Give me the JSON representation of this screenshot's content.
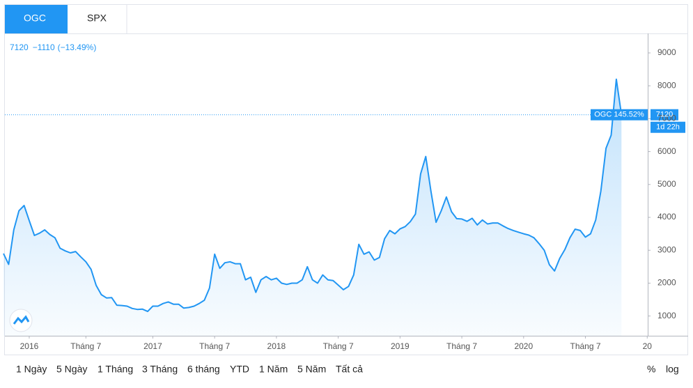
{
  "tabs": [
    "OGC",
    "SPX"
  ],
  "quote": {
    "change": "−1110",
    "change_pct": "(−13.49%)"
  },
  "ranges": [
    "1 Ngày",
    "5 Ngày",
    "1 Tháng",
    "3 Tháng",
    "6 tháng",
    "YTD",
    "1 Năm",
    "5 Năm",
    "Tất cả"
  ],
  "scales": [
    "%",
    "log"
  ],
  "chart_data": {
    "type": "line",
    "compare_label": "OGC 145.52%",
    "countdown": "1d 22h",
    "color": "#2196f3",
    "categories": [
      null,
      null,
      null,
      null,
      null,
      null,
      null,
      null,
      null,
      null,
      null,
      null,
      null,
      null,
      null,
      null,
      null,
      null,
      null,
      null,
      null,
      null,
      null,
      null,
      null,
      null,
      null,
      null,
      null,
      null,
      null,
      null,
      null,
      null,
      null,
      null,
      null,
      null,
      null,
      null,
      null,
      null,
      null,
      null,
      null,
      null,
      null,
      null,
      null,
      null,
      null,
      null,
      null,
      null,
      null,
      null,
      null,
      null,
      null,
      null,
      null,
      null,
      null,
      null,
      null,
      null,
      null,
      null,
      null,
      null,
      null,
      null,
      null,
      null,
      null,
      null,
      null,
      null,
      null,
      null,
      null,
      null,
      null,
      null,
      null,
      null,
      null,
      null,
      null,
      null,
      null,
      null,
      null,
      null,
      null,
      null,
      null,
      null,
      null,
      null,
      null,
      null,
      null,
      null,
      null,
      null,
      null,
      null,
      null,
      null,
      null,
      null,
      null,
      null,
      null,
      null,
      null,
      null,
      null,
      null,
      null
    ],
    "values": [
      2900,
      2570,
      3620,
      4200,
      4360,
      3900,
      3450,
      3520,
      3620,
      3480,
      3380,
      3060,
      2980,
      2920,
      2960,
      2800,
      2650,
      2420,
      1930,
      1650,
      1550,
      1560,
      1330,
      1320,
      1300,
      1230,
      1200,
      1210,
      1140,
      1300,
      1300,
      1380,
      1430,
      1360,
      1360,
      1240,
      1260,
      1300,
      1380,
      1480,
      1850,
      2880,
      2450,
      2620,
      2650,
      2590,
      2590,
      2100,
      2180,
      1720,
      2100,
      2200,
      2100,
      2150,
      2000,
      1960,
      2000,
      2000,
      2100,
      2500,
      2100,
      2000,
      2250,
      2100,
      2080,
      1940,
      1800,
      1900,
      2250,
      3180,
      2880,
      2950,
      2700,
      2780,
      3350,
      3600,
      3500,
      3650,
      3720,
      3870,
      4100,
      5320,
      5850,
      4800,
      3850,
      4200,
      4620,
      4170,
      3960,
      3950,
      3880,
      3970,
      3770,
      3920,
      3800,
      3830,
      3830,
      3740,
      3660,
      3600,
      3550,
      3500,
      3460,
      3380,
      3200,
      3000,
      2560,
      2370,
      2750,
      3020,
      3380,
      3640,
      3600,
      3400,
      3500,
      3920,
      4800,
      6100,
      6500,
      8200,
      7120
    ],
    "xlim": [
      0,
      125.1
    ],
    "xticks": [
      {
        "value": 5,
        "label": "2016"
      },
      {
        "value": 16,
        "label": "Tháng 7"
      },
      {
        "value": 29,
        "label": "2017"
      },
      {
        "value": 41,
        "label": "Tháng 7"
      },
      {
        "value": 53,
        "label": "2018"
      },
      {
        "value": 65,
        "label": "Tháng 7"
      },
      {
        "value": 77,
        "label": "2019"
      },
      {
        "value": 89,
        "label": "Tháng 7"
      },
      {
        "value": 101,
        "label": "2020"
      },
      {
        "value": 113,
        "label": "Tháng 7"
      },
      {
        "value": 125,
        "label": "20"
      }
    ],
    "ylim": [
      400,
      9550
    ],
    "yticks": [
      1000,
      2000,
      3000,
      4000,
      5000,
      6000,
      7000,
      8000,
      9000
    ]
  }
}
